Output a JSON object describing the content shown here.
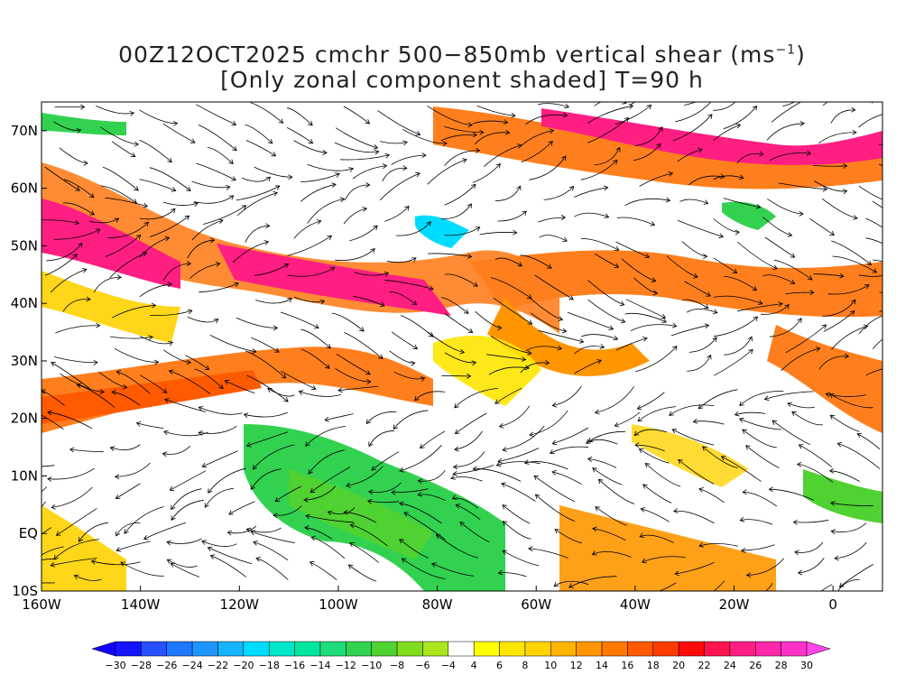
{
  "title": {
    "line1_pre": "00Z12OCT2025 cmchr 500−850mb vertical shear (ms",
    "line1_sup": "−1",
    "line1_post": ")",
    "line2": "[Only zonal component shaded] T=90 h"
  },
  "map": {
    "lon_range": [
      -160,
      10
    ],
    "lat_range": [
      -10,
      75
    ],
    "x_ticks": [
      "160W",
      "140W",
      "120W",
      "100W",
      "80W",
      "60W",
      "40W",
      "20W",
      "0"
    ],
    "y_ticks": [
      "70N",
      "60N",
      "50N",
      "40N",
      "30N",
      "20N",
      "10N",
      "EQ",
      "10S"
    ]
  },
  "colorbar": {
    "labels": [
      "−30",
      "−28",
      "−26",
      "−24",
      "−22",
      "−20",
      "−18",
      "−16",
      "−14",
      "−12",
      "−10",
      "−8",
      "−6",
      "−4",
      "4",
      "6",
      "8",
      "10",
      "12",
      "14",
      "16",
      "18",
      "20",
      "22",
      "24",
      "26",
      "28",
      "30"
    ],
    "colors": [
      "#1414ff",
      "#2850ff",
      "#1e78ff",
      "#1e96ff",
      "#14b4ff",
      "#00dcff",
      "#00e6c8",
      "#00e6a0",
      "#1edc78",
      "#32d250",
      "#50d232",
      "#82dc1e",
      "#aae61e",
      "#ffffff",
      "#ffff00",
      "#ffe600",
      "#ffd200",
      "#ffb400",
      "#ff9600",
      "#ff7800",
      "#ff5a00",
      "#ff3c00",
      "#ff0a0a",
      "#ff1450",
      "#ff1e82",
      "#ff28aa",
      "#ff32c8"
    ],
    "min_arrow_color": "#1400ff",
    "max_arrow_color": "#ff46e6"
  }
}
